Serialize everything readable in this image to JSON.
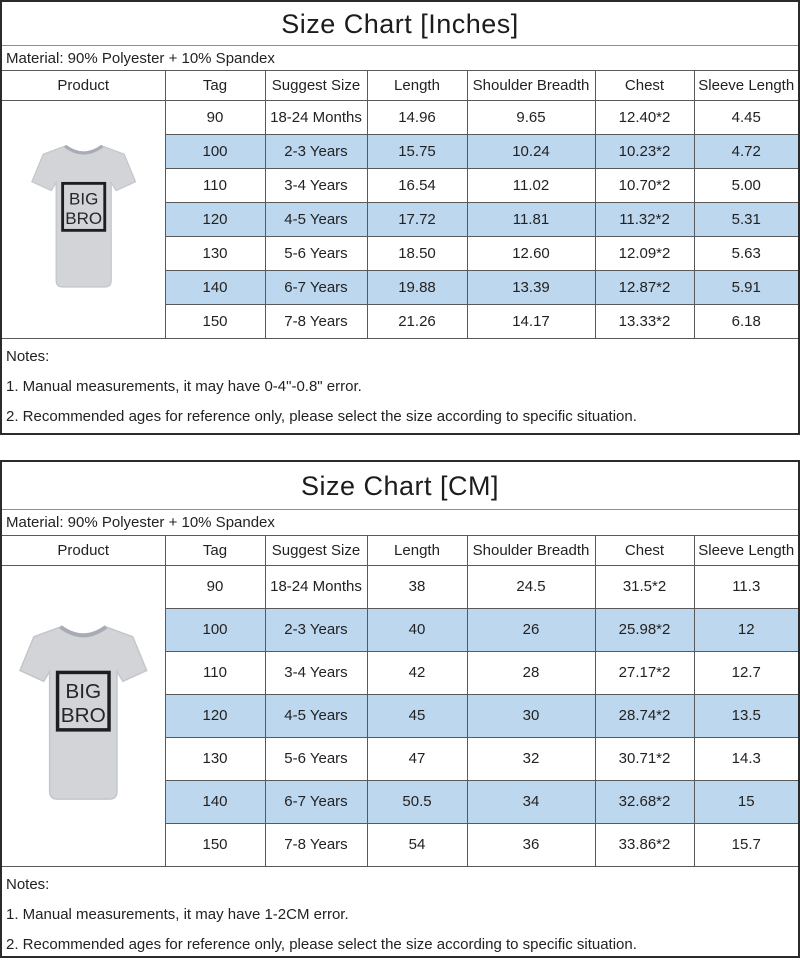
{
  "product": {
    "print_line1": "BIG",
    "print_line2": "BRO"
  },
  "colors": {
    "highlight_row": "#bdd7ee",
    "shirt_gray": "#d2d4d8",
    "print_outline": "#1e1e22"
  },
  "tables": [
    {
      "title": "Size Chart [Inches]",
      "material": "Material: 90% Polyester + 10% Spandex",
      "columns": [
        "Product",
        "Tag",
        "Suggest Size",
        "Length",
        "Shoulder Breadth",
        "Chest",
        "Sleeve Length"
      ],
      "rows": [
        {
          "tag": "90",
          "suggest_size": "18-24 Months",
          "length": "14.96",
          "shoulder_breadth": "9.65",
          "chest": "12.40*2",
          "sleeve_length": "4.45",
          "highlight": false
        },
        {
          "tag": "100",
          "suggest_size": "2-3 Years",
          "length": "15.75",
          "shoulder_breadth": "10.24",
          "chest": "10.23*2",
          "sleeve_length": "4.72",
          "highlight": true
        },
        {
          "tag": "110",
          "suggest_size": "3-4 Years",
          "length": "16.54",
          "shoulder_breadth": "11.02",
          "chest": "10.70*2",
          "sleeve_length": "5.00",
          "highlight": false
        },
        {
          "tag": "120",
          "suggest_size": "4-5 Years",
          "length": "17.72",
          "shoulder_breadth": "11.81",
          "chest": "11.32*2",
          "sleeve_length": "5.31",
          "highlight": true
        },
        {
          "tag": "130",
          "suggest_size": "5-6 Years",
          "length": "18.50",
          "shoulder_breadth": "12.60",
          "chest": "12.09*2",
          "sleeve_length": "5.63",
          "highlight": false
        },
        {
          "tag": "140",
          "suggest_size": "6-7 Years",
          "length": "19.88",
          "shoulder_breadth": "13.39",
          "chest": "12.87*2",
          "sleeve_length": "5.91",
          "highlight": true
        },
        {
          "tag": "150",
          "suggest_size": "7-8 Years",
          "length": "21.26",
          "shoulder_breadth": "14.17",
          "chest": "13.33*2",
          "sleeve_length": "6.18",
          "highlight": false
        }
      ],
      "notes": [
        "Notes:",
        "1. Manual measurements, it may have 0-4\"-0.8\" error.",
        "2. Recommended ages for reference only, please select the size according to specific situation."
      ]
    },
    {
      "title": "Size Chart [CM]",
      "material": "Material: 90% Polyester + 10% Spandex",
      "columns": [
        "Product",
        "Tag",
        "Suggest Size",
        "Length",
        "Shoulder Breadth",
        "Chest",
        "Sleeve Length"
      ],
      "rows": [
        {
          "tag": "90",
          "suggest_size": "18-24 Months",
          "length": "38",
          "shoulder_breadth": "24.5",
          "chest": "31.5*2",
          "sleeve_length": "11.3",
          "highlight": false
        },
        {
          "tag": "100",
          "suggest_size": "2-3 Years",
          "length": "40",
          "shoulder_breadth": "26",
          "chest": "25.98*2",
          "sleeve_length": "12",
          "highlight": true
        },
        {
          "tag": "110",
          "suggest_size": "3-4 Years",
          "length": "42",
          "shoulder_breadth": "28",
          "chest": "27.17*2",
          "sleeve_length": "12.7",
          "highlight": false
        },
        {
          "tag": "120",
          "suggest_size": "4-5 Years",
          "length": "45",
          "shoulder_breadth": "30",
          "chest": "28.74*2",
          "sleeve_length": "13.5",
          "highlight": true
        },
        {
          "tag": "130",
          "suggest_size": "5-6 Years",
          "length": "47",
          "shoulder_breadth": "32",
          "chest": "30.71*2",
          "sleeve_length": "14.3",
          "highlight": false
        },
        {
          "tag": "140",
          "suggest_size": "6-7 Years",
          "length": "50.5",
          "shoulder_breadth": "34",
          "chest": "32.68*2",
          "sleeve_length": "15",
          "highlight": true
        },
        {
          "tag": "150",
          "suggest_size": "7-8 Years",
          "length": "54",
          "shoulder_breadth": "36",
          "chest": "33.86*2",
          "sleeve_length": "15.7",
          "highlight": false
        }
      ],
      "notes": [
        "Notes:",
        "1. Manual measurements, it may have 1-2CM error.",
        "2. Recommended ages for reference only, please select the size according to specific situation."
      ]
    }
  ]
}
